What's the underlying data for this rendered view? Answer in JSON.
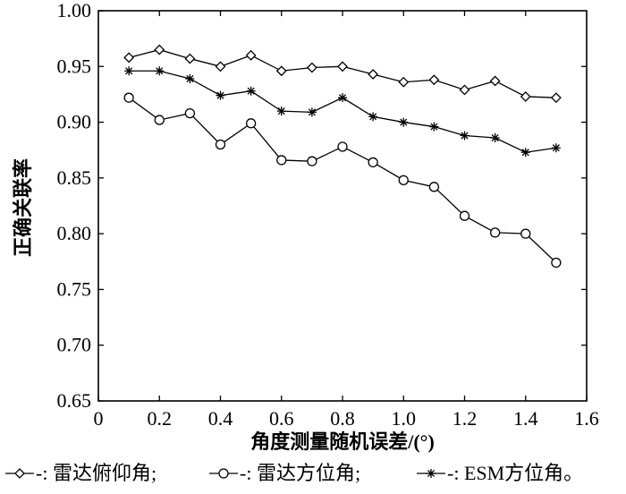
{
  "chart_data": {
    "type": "line",
    "xlabel": "角度测量随机误差/(°)",
    "ylabel": "正确关联率",
    "xlim": [
      0,
      1.6
    ],
    "ylim": [
      0.65,
      1.0
    ],
    "x_ticks": [
      "0",
      "0.2",
      "0.4",
      "0.6",
      "0.8",
      "1.0",
      "1.2",
      "1.4",
      "1.6"
    ],
    "y_ticks": [
      "0.65",
      "0.70",
      "0.75",
      "0.80",
      "0.85",
      "0.90",
      "0.95",
      "1.00"
    ],
    "grid": false,
    "legend_position": "bottom",
    "x": [
      0.1,
      0.2,
      0.3,
      0.4,
      0.5,
      0.6,
      0.7,
      0.8,
      0.9,
      1.0,
      1.1,
      1.2,
      1.3,
      1.4,
      1.5
    ],
    "series": [
      {
        "name": "雷达俯仰角",
        "marker": "diamond",
        "values": [
          0.958,
          0.965,
          0.957,
          0.95,
          0.96,
          0.946,
          0.949,
          0.95,
          0.943,
          0.936,
          0.938,
          0.929,
          0.937,
          0.923,
          0.922
        ]
      },
      {
        "name": "雷达方位角",
        "marker": "circle",
        "values": [
          0.922,
          0.902,
          0.908,
          0.88,
          0.899,
          0.866,
          0.865,
          0.878,
          0.864,
          0.848,
          0.842,
          0.816,
          0.801,
          0.8,
          0.774
        ]
      },
      {
        "name": "ESM方位角",
        "marker": "star",
        "values": [
          0.946,
          0.946,
          0.939,
          0.924,
          0.928,
          0.91,
          0.909,
          0.922,
          0.905,
          0.9,
          0.896,
          0.888,
          0.886,
          0.873,
          0.877
        ]
      }
    ]
  },
  "legend": {
    "separator": "-:",
    "delimiter": ";",
    "end": "。"
  },
  "colors": {
    "line": "#000000",
    "background": "#ffffff"
  }
}
